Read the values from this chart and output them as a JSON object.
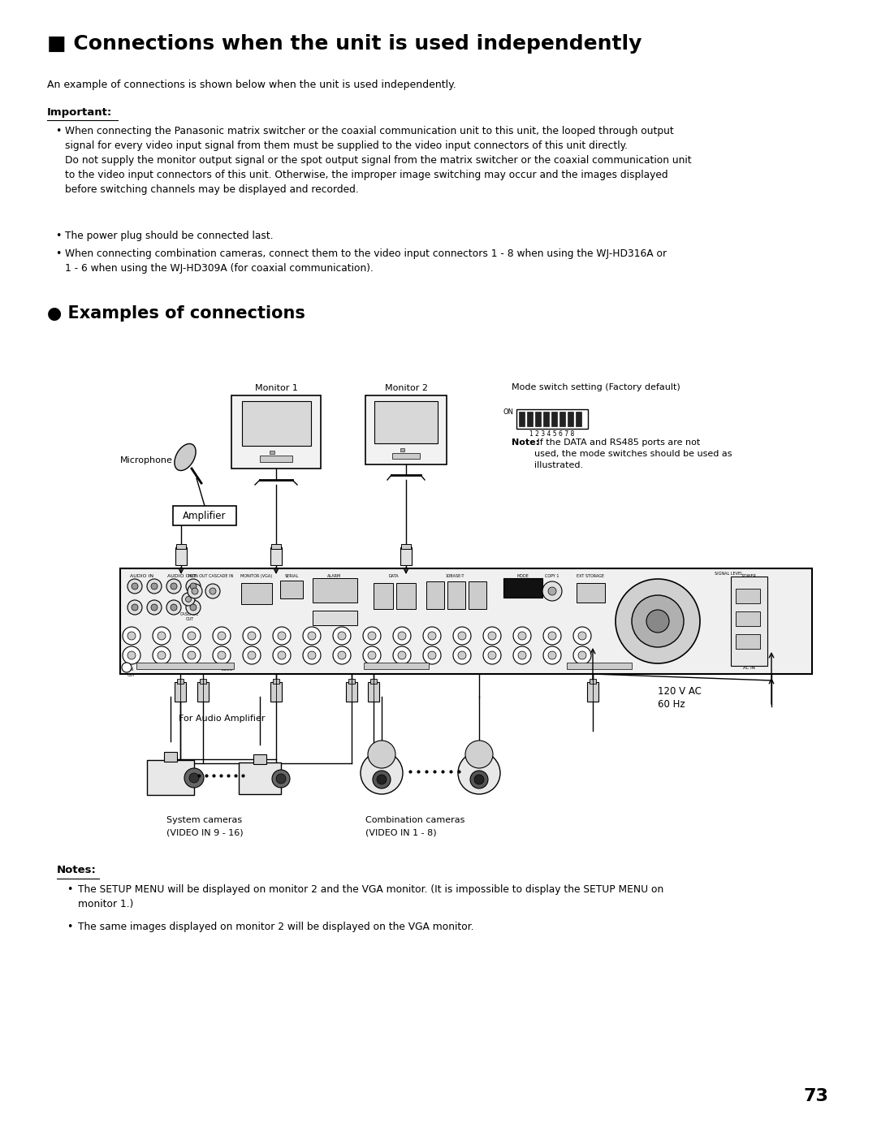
{
  "title": "■ Connections when the unit is used independently",
  "subtitle": "An example of connections is shown below when the unit is used independently.",
  "important_label": "Important:",
  "bullet1": "When connecting the Panasonic matrix switcher or the coaxial communication unit to this unit, the looped through output\nsignal for every video input signal from them must be supplied to the video input connectors of this unit directly.\nDo not supply the monitor output signal or the spot output signal from the matrix switcher or the coaxial communication unit\nto the video input connectors of this unit. Otherwise, the improper image switching may occur and the images displayed\nbefore switching channels may be displayed and recorded.",
  "bullet2": "The power plug should be connected last.",
  "bullet3": "When connecting combination cameras, connect them to the video input connectors 1 - 8 when using the WJ-HD316A or\n1 - 6 when using the WJ-HD309A (for coaxial communication).",
  "examples_title": "● Examples of connections",
  "note_bold": "Note:",
  "note_rest": " If the DATA and RS485 ports are not\nused, the mode switches should be used as\nillustrated.",
  "notes_label": "Notes:",
  "note1": "The SETUP MENU will be displayed on monitor 2 and the VGA monitor. (It is impossible to display the SETUP MENU on\nmonitor 1.)",
  "note2": "The same images displayed on monitor 2 will be displayed on the VGA monitor.",
  "page_number": "73",
  "bg": "#ffffff",
  "fg": "#000000"
}
